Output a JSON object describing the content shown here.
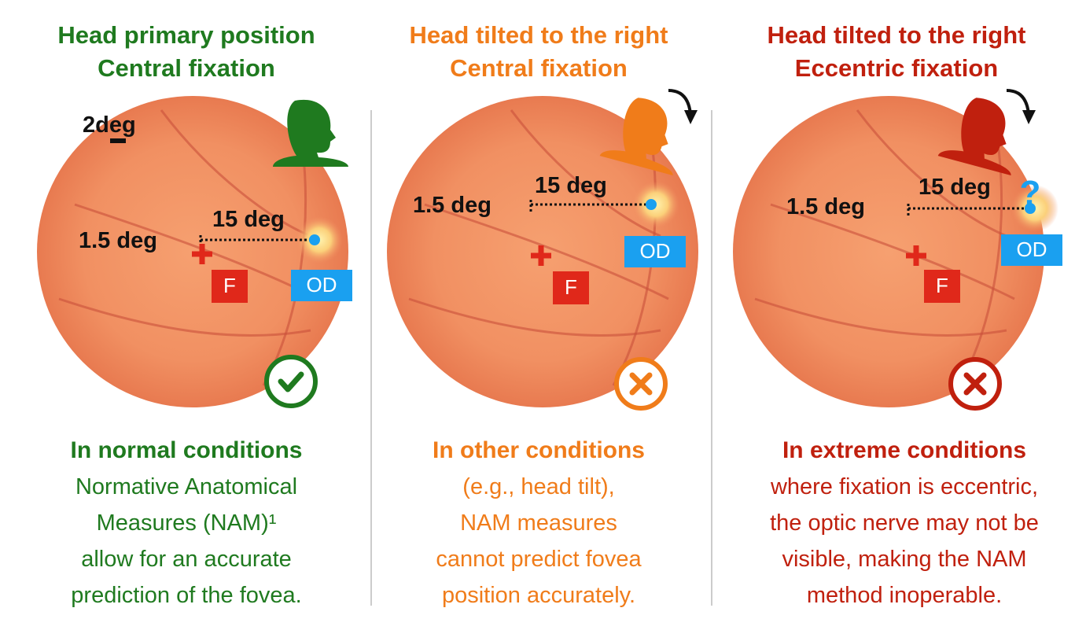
{
  "panels": [
    {
      "title": [
        "Head primary position",
        "Central fixation"
      ],
      "scale": "2deg",
      "near": "1.5 deg",
      "far": "15 deg",
      "fovea": "F",
      "disc": "OD",
      "caption": [
        "In normal conditions",
        "Normative Anatomical",
        "Measures (NAM)¹",
        "allow for an accurate",
        "prediction of the fovea."
      ]
    },
    {
      "title": [
        "Head tilted to the right",
        "Central fixation"
      ],
      "near": "1.5 deg",
      "far": "15 deg",
      "fovea": "F",
      "disc": "OD",
      "caption": [
        "In other conditions",
        "(e.g., head tilt),",
        "NAM measures",
        "cannot predict fovea",
        "position accurately."
      ]
    },
    {
      "title": [
        "Head tilted to the right",
        "Eccentric fixation"
      ],
      "near": "1.5 deg",
      "far": "15 deg",
      "unknown": "?",
      "fovea": "F",
      "disc": "OD",
      "caption": [
        "In extreme conditions",
        "where fixation is eccentric,",
        "the optic nerve may not be",
        "visible, making the NAM",
        "method inoperable."
      ]
    }
  ]
}
